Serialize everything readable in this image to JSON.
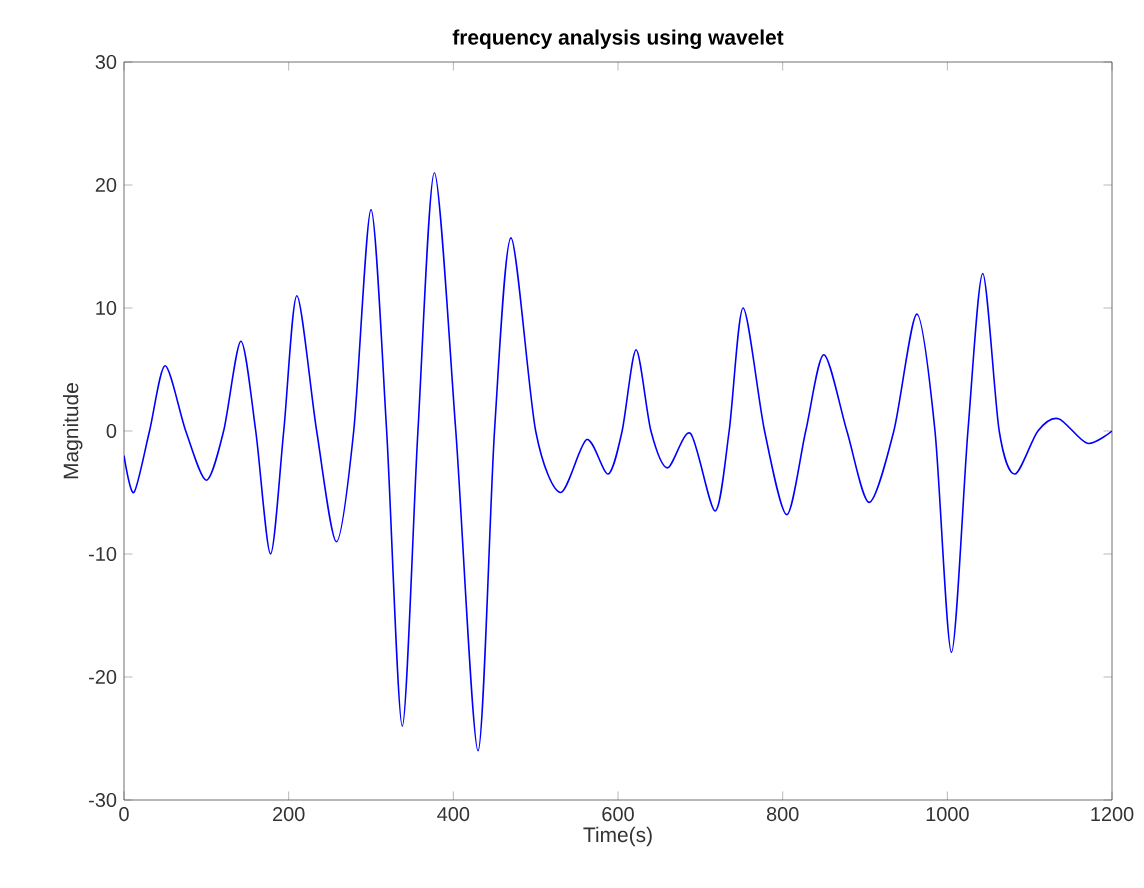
{
  "chart_data": {
    "type": "line",
    "title": "frequency analysis using wavelet",
    "xlabel": "Time(s)",
    "ylabel": "Magnitude",
    "x": [
      0,
      12,
      31,
      50,
      75,
      100,
      121,
      142,
      160,
      178,
      194,
      210,
      234,
      258,
      279,
      300,
      319,
      338,
      357,
      377,
      403,
      430,
      450,
      470,
      500,
      530,
      562,
      588,
      605,
      622,
      640,
      660,
      688,
      718,
      735,
      752,
      778,
      805,
      828,
      850,
      878,
      905,
      935,
      963,
      985,
      1005,
      1025,
      1043,
      1063,
      1082,
      1110,
      1135,
      1170,
      1200
    ],
    "series": [
      {
        "color": "#0000ff",
        "values": [
          -2,
          -5,
          0,
          5.3,
          0,
          -4,
          0,
          7.3,
          0,
          -10,
          0,
          11,
          0,
          -9,
          0,
          18,
          0,
          -24,
          0,
          21,
          0,
          -26,
          0,
          15.7,
          0,
          -5,
          -0.7,
          -3.5,
          0,
          6.6,
          0,
          -3,
          -0.2,
          -6.5,
          0,
          10,
          0,
          -6.8,
          0,
          6.2,
          0,
          -5.8,
          0,
          9.5,
          0,
          -18,
          0,
          12.8,
          0,
          -3.5,
          0,
          1,
          -1,
          0
        ]
      }
    ],
    "xlim": [
      0,
      1200
    ],
    "ylim": [
      -30,
      30
    ],
    "xticks": [
      0,
      200,
      400,
      600,
      800,
      1000,
      1200
    ],
    "yticks": [
      -30,
      -20,
      -10,
      0,
      10,
      20,
      30
    ],
    "marker": "none",
    "line_style": "solid"
  }
}
